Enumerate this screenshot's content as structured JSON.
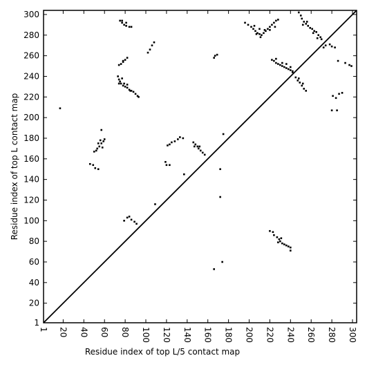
{
  "chart_data": {
    "type": "scatter",
    "x_label": "Residue index of top L/5 contact map",
    "y_label": "Residue index of top L contact map",
    "color": "#000000",
    "xlim": [
      1,
      304
    ],
    "ylim": [
      1,
      304
    ],
    "xticks": [
      1,
      20,
      40,
      60,
      80,
      100,
      120,
      140,
      160,
      180,
      200,
      220,
      240,
      260,
      280,
      300
    ],
    "yticks": [
      1,
      20,
      40,
      60,
      80,
      100,
      120,
      140,
      160,
      180,
      200,
      220,
      240,
      260,
      280,
      300
    ],
    "x": [
      17,
      73,
      74,
      75,
      76,
      78,
      80,
      82,
      84,
      86,
      88,
      90,
      92,
      93,
      74,
      77,
      79,
      82,
      85,
      74,
      76,
      78,
      80,
      82,
      78,
      75,
      77,
      79,
      81,
      84,
      86,
      77,
      81,
      102,
      104,
      106,
      108,
      57,
      46,
      49,
      50,
      52,
      53,
      55,
      57,
      59,
      60,
      54,
      56,
      58,
      51,
      54,
      119,
      120,
      121,
      123,
      125,
      128,
      131,
      133,
      136,
      123,
      137,
      146,
      148,
      150,
      151,
      153,
      155,
      157,
      147,
      152,
      166,
      167,
      169,
      175,
      172,
      172,
      109,
      79,
      82,
      84,
      86,
      89,
      91,
      166,
      174,
      196,
      199,
      202,
      204,
      206,
      208,
      210,
      212,
      214,
      216,
      218,
      220,
      222,
      224,
      226,
      228,
      205,
      210,
      215,
      220,
      207,
      211,
      225,
      222,
      224,
      226,
      228,
      230,
      232,
      234,
      236,
      238,
      240,
      242,
      226,
      232,
      236,
      240,
      242,
      245,
      247,
      249,
      251,
      253,
      255,
      248,
      252,
      248,
      250,
      251,
      253,
      255,
      257,
      259,
      261,
      263,
      265,
      267,
      269,
      270,
      252,
      256,
      262,
      266,
      272,
      274,
      278,
      280,
      283,
      286,
      293,
      297,
      299,
      281,
      284,
      287,
      290,
      280,
      285,
      220,
      223,
      224,
      227,
      229,
      230,
      232,
      234,
      236,
      238,
      240,
      240,
      228,
      231
    ],
    "values": [
      209,
      240,
      237,
      235,
      233,
      231,
      230,
      229,
      227,
      226,
      225,
      223,
      221,
      220,
      233,
      238,
      233,
      232,
      226,
      251,
      252,
      254,
      256,
      258,
      255,
      294,
      292,
      290,
      289,
      288,
      288,
      294,
      292,
      263,
      266,
      270,
      273,
      188,
      155,
      154,
      167,
      168,
      170,
      172,
      175,
      177,
      179,
      175,
      178,
      171,
      151,
      150,
      157,
      154,
      173,
      174,
      176,
      177,
      179,
      181,
      180,
      154,
      145,
      176,
      174,
      172,
      170,
      168,
      166,
      164,
      172,
      172,
      258,
      260,
      261,
      184,
      150,
      123,
      116,
      100,
      103,
      104,
      101,
      99,
      97,
      53,
      60,
      292,
      290,
      288,
      286,
      284,
      282,
      281,
      280,
      282,
      284,
      286,
      288,
      290,
      292,
      294,
      295,
      289,
      286,
      285,
      285,
      281,
      278,
      288,
      256,
      255,
      253,
      252,
      251,
      250,
      249,
      248,
      247,
      246,
      245,
      257,
      253,
      252,
      249,
      244,
      239,
      236,
      234,
      231,
      228,
      226,
      238,
      233,
      302,
      299,
      296,
      293,
      291,
      289,
      287,
      286,
      284,
      283,
      280,
      278,
      276,
      290,
      293,
      282,
      277,
      268,
      270,
      271,
      269,
      268,
      255,
      253,
      251,
      250,
      221,
      219,
      223,
      224,
      207,
      207,
      90,
      89,
      86,
      84,
      82,
      80,
      78,
      77,
      76,
      75,
      74,
      71,
      79,
      83
    ]
  }
}
